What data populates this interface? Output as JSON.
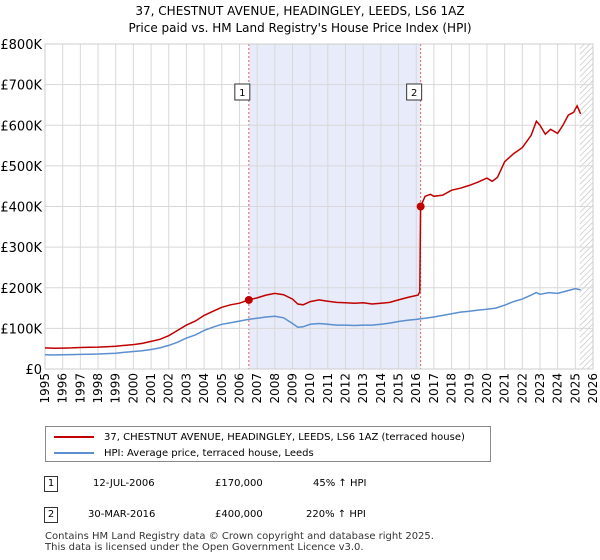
{
  "title_line1": "37, CHESTNUT AVENUE, HEADINGLEY, LEEDS, LS6 1AZ",
  "title_line2": "Price paid vs. HM Land Registry's House Price Index (HPI)",
  "colors": {
    "property": "#c00000",
    "hpi": "#5b8fd0",
    "shade": "#e8ecfa",
    "marker_line": "#e06060",
    "grid": "#d8d8d8"
  },
  "chart_data": {
    "type": "line",
    "x_range": [
      1995,
      2026
    ],
    "y_range": [
      0,
      800000
    ],
    "y_ticks": [
      0,
      100000,
      200000,
      300000,
      400000,
      500000,
      600000,
      700000,
      800000
    ],
    "y_tick_labels": [
      "£0",
      "£100K",
      "£200K",
      "£300K",
      "£400K",
      "£500K",
      "£600K",
      "£700K",
      "£800K"
    ],
    "x_ticks": [
      1995,
      1996,
      1997,
      1998,
      1999,
      2000,
      2001,
      2002,
      2003,
      2004,
      2005,
      2006,
      2007,
      2008,
      2009,
      2010,
      2011,
      2012,
      2013,
      2014,
      2015,
      2016,
      2017,
      2018,
      2019,
      2020,
      2021,
      2022,
      2023,
      2024,
      2025,
      2026
    ],
    "x_tick_labels": [
      "1995",
      "1996",
      "1997",
      "1998",
      "1999",
      "2000",
      "2001",
      "2002",
      "2003",
      "2004",
      "2005",
      "2006",
      "2007",
      "2008",
      "2009",
      "2010",
      "2011",
      "2012",
      "2013",
      "2014",
      "2015",
      "2016",
      "2017",
      "2018",
      "2019",
      "2020",
      "2021",
      "2022",
      "2023",
      "2024",
      "2025",
      "2026"
    ],
    "shaded_region": [
      2006.53,
      2016.25
    ],
    "hatched_from": 2025.25,
    "markers": [
      {
        "label": "1",
        "x": 2006.53,
        "y": 170000
      },
      {
        "label": "2",
        "x": 2016.25,
        "y": 400000
      }
    ],
    "series": [
      {
        "name": "37, CHESTNUT AVENUE, HEADINGLEY, LEEDS, LS6 1AZ (terraced house)",
        "points": [
          [
            1995.0,
            52000
          ],
          [
            1995.5,
            51000
          ],
          [
            1996.0,
            51500
          ],
          [
            1996.5,
            52000
          ],
          [
            1997.0,
            53000
          ],
          [
            1997.5,
            53500
          ],
          [
            1998.0,
            54000
          ],
          [
            1998.5,
            55000
          ],
          [
            1999.0,
            56000
          ],
          [
            1999.5,
            58000
          ],
          [
            2000.0,
            60000
          ],
          [
            2000.5,
            63000
          ],
          [
            2001.0,
            68000
          ],
          [
            2001.5,
            73000
          ],
          [
            2002.0,
            82000
          ],
          [
            2002.5,
            95000
          ],
          [
            2003.0,
            108000
          ],
          [
            2003.5,
            118000
          ],
          [
            2004.0,
            132000
          ],
          [
            2004.5,
            142000
          ],
          [
            2005.0,
            152000
          ],
          [
            2005.5,
            158000
          ],
          [
            2006.0,
            162000
          ],
          [
            2006.53,
            170000
          ],
          [
            2007.0,
            175000
          ],
          [
            2007.5,
            182000
          ],
          [
            2008.0,
            186000
          ],
          [
            2008.5,
            183000
          ],
          [
            2009.0,
            172000
          ],
          [
            2009.3,
            160000
          ],
          [
            2009.6,
            158000
          ],
          [
            2010.0,
            166000
          ],
          [
            2010.5,
            170000
          ],
          [
            2011.0,
            167000
          ],
          [
            2011.5,
            164000
          ],
          [
            2012.0,
            163000
          ],
          [
            2012.5,
            162000
          ],
          [
            2013.0,
            163000
          ],
          [
            2013.5,
            160000
          ],
          [
            2014.0,
            162000
          ],
          [
            2014.5,
            164000
          ],
          [
            2015.0,
            170000
          ],
          [
            2015.5,
            176000
          ],
          [
            2015.9,
            180000
          ],
          [
            2016.1,
            182000
          ],
          [
            2016.2,
            190000
          ],
          [
            2016.25,
            400000
          ],
          [
            2016.5,
            425000
          ],
          [
            2016.8,
            430000
          ],
          [
            2017.0,
            425000
          ],
          [
            2017.5,
            428000
          ],
          [
            2018.0,
            440000
          ],
          [
            2018.5,
            445000
          ],
          [
            2019.0,
            452000
          ],
          [
            2019.5,
            460000
          ],
          [
            2020.0,
            470000
          ],
          [
            2020.3,
            462000
          ],
          [
            2020.6,
            472000
          ],
          [
            2021.0,
            510000
          ],
          [
            2021.5,
            530000
          ],
          [
            2022.0,
            545000
          ],
          [
            2022.5,
            575000
          ],
          [
            2022.8,
            610000
          ],
          [
            2023.0,
            600000
          ],
          [
            2023.3,
            578000
          ],
          [
            2023.6,
            590000
          ],
          [
            2024.0,
            580000
          ],
          [
            2024.3,
            600000
          ],
          [
            2024.6,
            625000
          ],
          [
            2024.9,
            632000
          ],
          [
            2025.1,
            648000
          ],
          [
            2025.3,
            628000
          ]
        ]
      },
      {
        "name": "HPI: Average price, terraced house, Leeds",
        "points": [
          [
            1995.0,
            35000
          ],
          [
            1995.5,
            34500
          ],
          [
            1996.0,
            35000
          ],
          [
            1996.5,
            35500
          ],
          [
            1997.0,
            36000
          ],
          [
            1997.5,
            36500
          ],
          [
            1998.0,
            37000
          ],
          [
            1998.5,
            38000
          ],
          [
            1999.0,
            39000
          ],
          [
            1999.5,
            41000
          ],
          [
            2000.0,
            43000
          ],
          [
            2000.5,
            45000
          ],
          [
            2001.0,
            48000
          ],
          [
            2001.5,
            52000
          ],
          [
            2002.0,
            58000
          ],
          [
            2002.5,
            66000
          ],
          [
            2003.0,
            76000
          ],
          [
            2003.5,
            84000
          ],
          [
            2004.0,
            95000
          ],
          [
            2004.5,
            103000
          ],
          [
            2005.0,
            110000
          ],
          [
            2005.5,
            114000
          ],
          [
            2006.0,
            118000
          ],
          [
            2006.5,
            122000
          ],
          [
            2007.0,
            125000
          ],
          [
            2007.5,
            128000
          ],
          [
            2008.0,
            130000
          ],
          [
            2008.5,
            126000
          ],
          [
            2009.0,
            112000
          ],
          [
            2009.3,
            103000
          ],
          [
            2009.6,
            104000
          ],
          [
            2010.0,
            110000
          ],
          [
            2010.5,
            112000
          ],
          [
            2011.0,
            110000
          ],
          [
            2011.5,
            108000
          ],
          [
            2012.0,
            108000
          ],
          [
            2012.5,
            107000
          ],
          [
            2013.0,
            108000
          ],
          [
            2013.5,
            108000
          ],
          [
            2014.0,
            110000
          ],
          [
            2014.5,
            113000
          ],
          [
            2015.0,
            117000
          ],
          [
            2015.5,
            120000
          ],
          [
            2016.0,
            122000
          ],
          [
            2016.5,
            125000
          ],
          [
            2017.0,
            128000
          ],
          [
            2017.5,
            132000
          ],
          [
            2018.0,
            136000
          ],
          [
            2018.5,
            140000
          ],
          [
            2019.0,
            142000
          ],
          [
            2019.5,
            145000
          ],
          [
            2020.0,
            147000
          ],
          [
            2020.5,
            150000
          ],
          [
            2021.0,
            157000
          ],
          [
            2021.5,
            166000
          ],
          [
            2022.0,
            172000
          ],
          [
            2022.5,
            182000
          ],
          [
            2022.8,
            188000
          ],
          [
            2023.0,
            184000
          ],
          [
            2023.5,
            188000
          ],
          [
            2024.0,
            186000
          ],
          [
            2024.5,
            192000
          ],
          [
            2025.0,
            198000
          ],
          [
            2025.3,
            195000
          ]
        ]
      }
    ]
  },
  "legend": {
    "property_label": "37, CHESTNUT AVENUE, HEADINGLEY, LEEDS, LS6 1AZ (terraced house)",
    "hpi_label": "HPI: Average price, terraced house, Leeds"
  },
  "transactions": [
    {
      "badge": "1",
      "date": "12-JUL-2006",
      "price": "£170,000",
      "hpi": "45% ↑ HPI"
    },
    {
      "badge": "2",
      "date": "30-MAR-2016",
      "price": "£400,000",
      "hpi": "220% ↑ HPI"
    }
  ],
  "footer_line1": "Contains HM Land Registry data © Crown copyright and database right 2025.",
  "footer_line2": "This data is licensed under the Open Government Licence v3.0."
}
